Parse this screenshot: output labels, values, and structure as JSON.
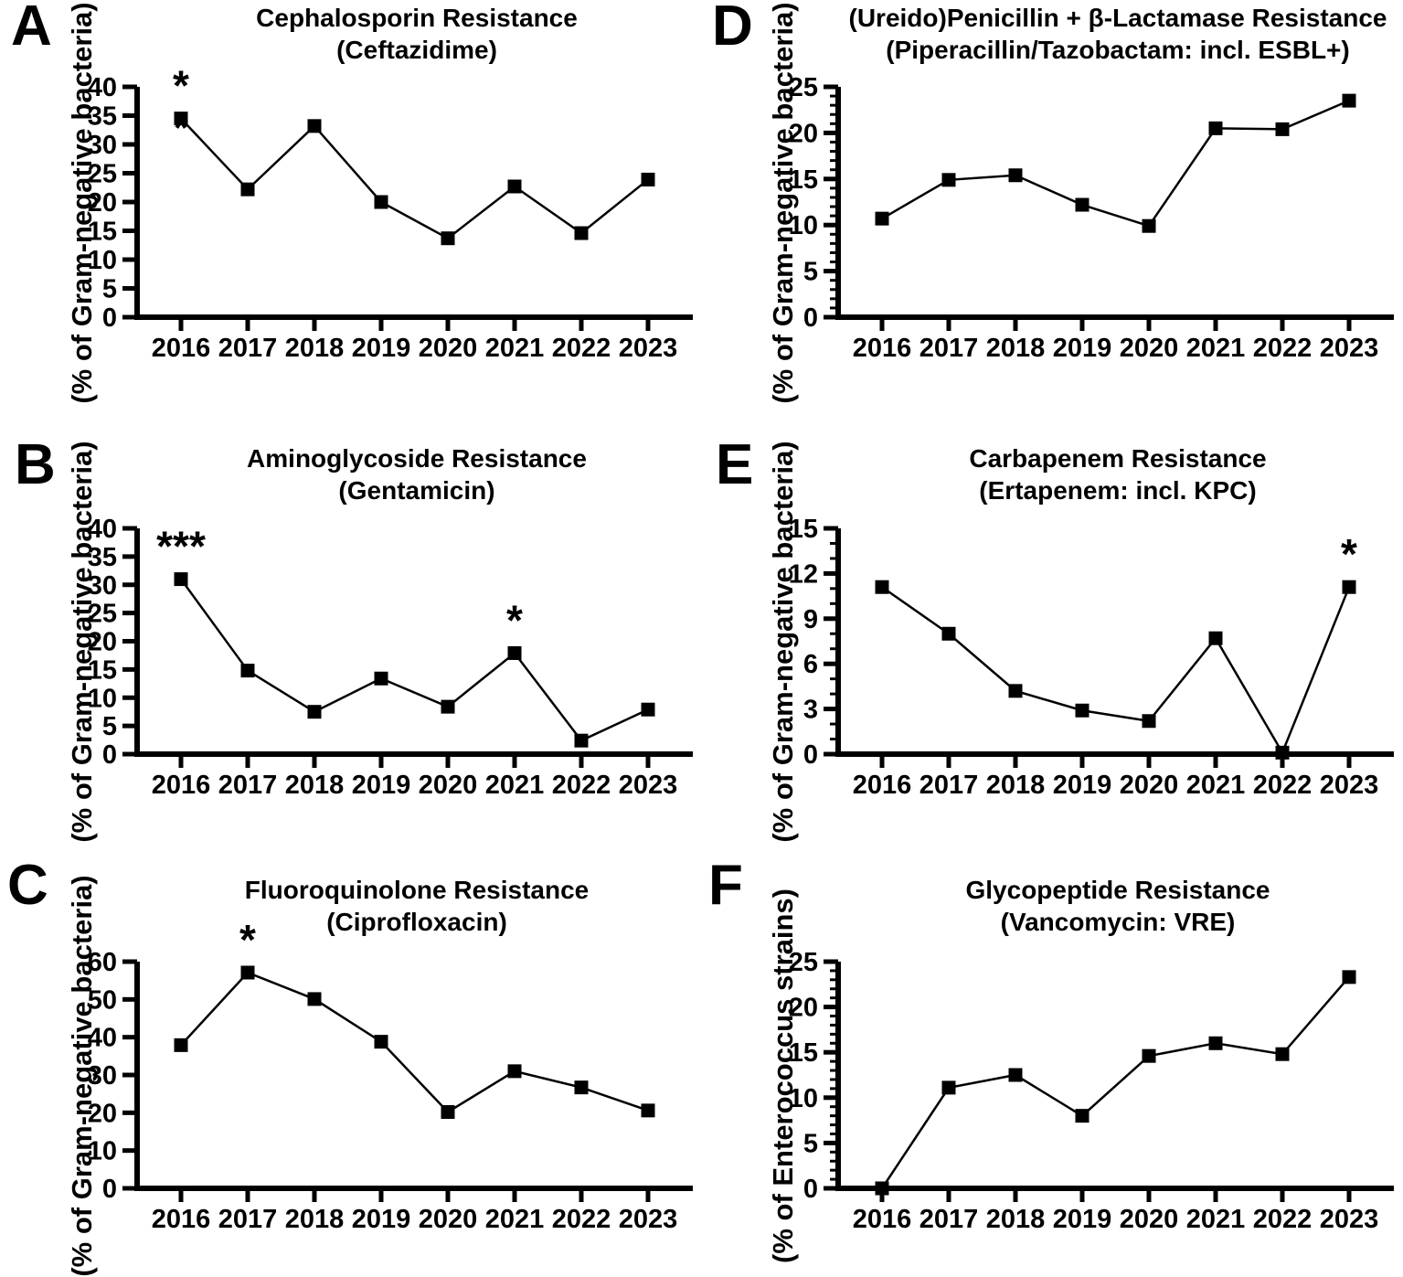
{
  "figure": {
    "background": "#ffffff",
    "ink": "#000000"
  },
  "chart_data": [
    {
      "type": "line",
      "letter": "A",
      "title_line1": "Cephalosporin Resistance",
      "title_line2": "(Ceftazidime)",
      "ylabel": "(% of Gram-negative bacteria)",
      "categories": [
        "2016",
        "2017",
        "2018",
        "2019",
        "2020",
        "2021",
        "2022",
        "2023"
      ],
      "values": [
        34.5,
        22.2,
        33.2,
        20.0,
        13.7,
        22.7,
        14.6,
        23.9
      ],
      "ylim": [
        0,
        40
      ],
      "ystep": 5,
      "yminor": null,
      "annotations": [
        {
          "year": "2016",
          "text": "*",
          "position": "above"
        },
        {
          "year": "2016",
          "text": "*",
          "position": "behind"
        }
      ]
    },
    {
      "type": "line",
      "letter": "D",
      "title_line1": "(Ureido)Penicillin + β-Lactamase Resistance",
      "title_line2": "(Piperacillin/Tazobactam: incl. ESBL+)",
      "ylabel": "(% of Gram-negative bacteria)",
      "categories": [
        "2016",
        "2017",
        "2018",
        "2019",
        "2020",
        "2021",
        "2022",
        "2023"
      ],
      "values": [
        10.7,
        14.9,
        15.4,
        12.2,
        9.9,
        20.5,
        20.4,
        23.5
      ],
      "ylim": [
        0,
        25
      ],
      "ystep": 5,
      "yminor": 1,
      "annotations": []
    },
    {
      "type": "line",
      "letter": "B",
      "title_line1": "Aminoglycoside Resistance",
      "title_line2": "(Gentamicin)",
      "ylabel": "(% of Gram-negative bacteria)",
      "categories": [
        "2016",
        "2017",
        "2018",
        "2019",
        "2020",
        "2021",
        "2022",
        "2023"
      ],
      "values": [
        31.0,
        14.8,
        7.5,
        13.4,
        8.4,
        17.9,
        2.4,
        7.9
      ],
      "ylim": [
        0,
        40
      ],
      "ystep": 5,
      "yminor": null,
      "annotations": [
        {
          "year": "2016",
          "text": "***",
          "position": "above"
        },
        {
          "year": "2021",
          "text": "*",
          "position": "above"
        }
      ]
    },
    {
      "type": "line",
      "letter": "E",
      "title_line1": "Carbapenem Resistance",
      "title_line2": "(Ertapenem: incl. KPC)",
      "ylabel": "(% of Gram-negative bacteria)",
      "categories": [
        "2016",
        "2017",
        "2018",
        "2019",
        "2020",
        "2021",
        "2022",
        "2023"
      ],
      "values": [
        11.1,
        8.0,
        4.2,
        2.9,
        2.2,
        7.7,
        0.1,
        11.1
      ],
      "ylim": [
        0,
        15
      ],
      "ystep": 3,
      "yminor": 1,
      "annotations": [
        {
          "year": "2023",
          "text": "*",
          "position": "above"
        }
      ]
    },
    {
      "type": "line",
      "letter": "C",
      "title_line1": "Fluoroquinolone Resistance",
      "title_line2": "(Ciprofloxacin)",
      "ylabel": "(% of Gram-negative bacteria)",
      "categories": [
        "2016",
        "2017",
        "2018",
        "2019",
        "2020",
        "2021",
        "2022",
        "2023"
      ],
      "values": [
        37.9,
        57.1,
        50.1,
        38.8,
        20.2,
        31.0,
        26.7,
        20.6
      ],
      "ylim": [
        0,
        60
      ],
      "ystep": 10,
      "yminor": null,
      "annotations": [
        {
          "year": "2017",
          "text": "*",
          "position": "above"
        }
      ]
    },
    {
      "type": "line",
      "letter": "F",
      "title_line1": "Glycopeptide Resistance",
      "title_line2": "(Vancomycin: VRE)",
      "ylabel": "(% of Enterococcus strains)",
      "categories": [
        "2016",
        "2017",
        "2018",
        "2019",
        "2020",
        "2021",
        "2022",
        "2023"
      ],
      "values": [
        0.0,
        11.1,
        12.5,
        8.0,
        14.6,
        16.0,
        14.8,
        23.3
      ],
      "ylim": [
        0,
        25
      ],
      "ystep": 5,
      "yminor": 1,
      "annotations": []
    }
  ]
}
